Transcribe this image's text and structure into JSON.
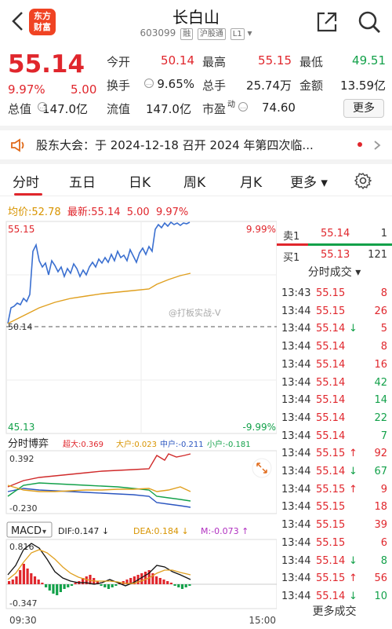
{
  "header": {
    "title": "长白山",
    "code": "603099",
    "tags": [
      "融",
      "沪股通",
      "L1"
    ],
    "logo_line1": "东方",
    "logo_line2": "财富"
  },
  "quote": {
    "price": "55.14",
    "pct": "9.97%",
    "change": "5.00",
    "rows": [
      [
        {
          "l": "今开",
          "v": "50.14",
          "c": "red"
        },
        {
          "l": "最高",
          "v": "55.15",
          "c": "red"
        },
        {
          "l": "最低",
          "v": "49.51",
          "c": "green"
        }
      ],
      [
        {
          "l": "换手",
          "v": "9.65%",
          "c": "black"
        },
        {
          "l": "总手",
          "v": "25.74万",
          "c": "black"
        },
        {
          "l": "金额",
          "v": "13.59亿",
          "c": "black"
        }
      ],
      [
        {
          "l": "总值",
          "v": "147.0亿",
          "c": "black"
        },
        {
          "l": "流值",
          "v": "147.0亿",
          "c": "black"
        },
        {
          "l": "市盈",
          "v": "74.60",
          "c": "black"
        }
      ]
    ],
    "pe_sup": "动",
    "more": "更多"
  },
  "notice": {
    "text": "股东大会：于 2024-12-18 召开 2024 年第四次临..."
  },
  "tabs": [
    "分时",
    "五日",
    "日K",
    "周K",
    "月K",
    "更多"
  ],
  "priceline": {
    "avg_label": "均价:",
    "avg": "52.78",
    "latest_label": "最新:",
    "latest": "55.14",
    "chg": "5.00",
    "pct": "9.97%"
  },
  "chart_data": {
    "type": "line",
    "top_left": "55.15",
    "top_right": "9.99%",
    "mid_left": "50.14",
    "bottom_left": "45.13",
    "bottom_right": "-9.99%",
    "time_start": "09:30",
    "time_end": "15:00",
    "bobing": {
      "label": "分时博弈",
      "big": "超大:0.369",
      "da": "大户:0.023",
      "zhong": "中户:-0.211",
      "xiao": "小户:-0.181",
      "top": "0.392",
      "bottom": "-0.230"
    },
    "macd": {
      "label": "MACD",
      "dif": "DIF:0.147",
      "dea": "DEA:0.184",
      "m": "M:-0.073",
      "top": "0.816",
      "bottom": "-0.347"
    }
  },
  "panel": {
    "sell": {
      "label": "卖1",
      "price": "55.14",
      "vol": "1"
    },
    "buy": {
      "label": "买1",
      "price": "55.13",
      "vol": "121"
    },
    "title": "分时成交",
    "trades": [
      {
        "t": "13:43",
        "p": "55.15",
        "a": "",
        "v": "8",
        "c": "red"
      },
      {
        "t": "13:44",
        "p": "55.15",
        "a": "",
        "v": "26",
        "c": "red"
      },
      {
        "t": "13:44",
        "p": "55.14",
        "a": "↓",
        "v": "5",
        "c": "red"
      },
      {
        "t": "13:44",
        "p": "55.14",
        "a": "",
        "v": "8",
        "c": "red"
      },
      {
        "t": "13:44",
        "p": "55.14",
        "a": "",
        "v": "16",
        "c": "red"
      },
      {
        "t": "13:44",
        "p": "55.14",
        "a": "",
        "v": "42",
        "c": "green"
      },
      {
        "t": "13:44",
        "p": "55.14",
        "a": "",
        "v": "14",
        "c": "green"
      },
      {
        "t": "13:44",
        "p": "55.14",
        "a": "",
        "v": "22",
        "c": "green"
      },
      {
        "t": "13:44",
        "p": "55.14",
        "a": "",
        "v": "7",
        "c": "green"
      },
      {
        "t": "13:44",
        "p": "55.15",
        "a": "↑",
        "v": "92",
        "c": "red"
      },
      {
        "t": "13:44",
        "p": "55.14",
        "a": "↓",
        "v": "67",
        "c": "green"
      },
      {
        "t": "13:44",
        "p": "55.15",
        "a": "↑",
        "v": "9",
        "c": "red"
      },
      {
        "t": "13:44",
        "p": "55.15",
        "a": "",
        "v": "18",
        "c": "red"
      },
      {
        "t": "13:44",
        "p": "55.15",
        "a": "",
        "v": "39",
        "c": "red"
      },
      {
        "t": "13:44",
        "p": "55.15",
        "a": "",
        "v": "6",
        "c": "red"
      },
      {
        "t": "13:44",
        "p": "55.14",
        "a": "↓",
        "v": "8",
        "c": "green"
      },
      {
        "t": "13:44",
        "p": "55.15",
        "a": "↑",
        "v": "56",
        "c": "red"
      },
      {
        "t": "13:44",
        "p": "55.14",
        "a": "↓",
        "v": "10",
        "c": "green"
      }
    ],
    "more": "更多成交"
  },
  "watermark": "@打板实战-V"
}
